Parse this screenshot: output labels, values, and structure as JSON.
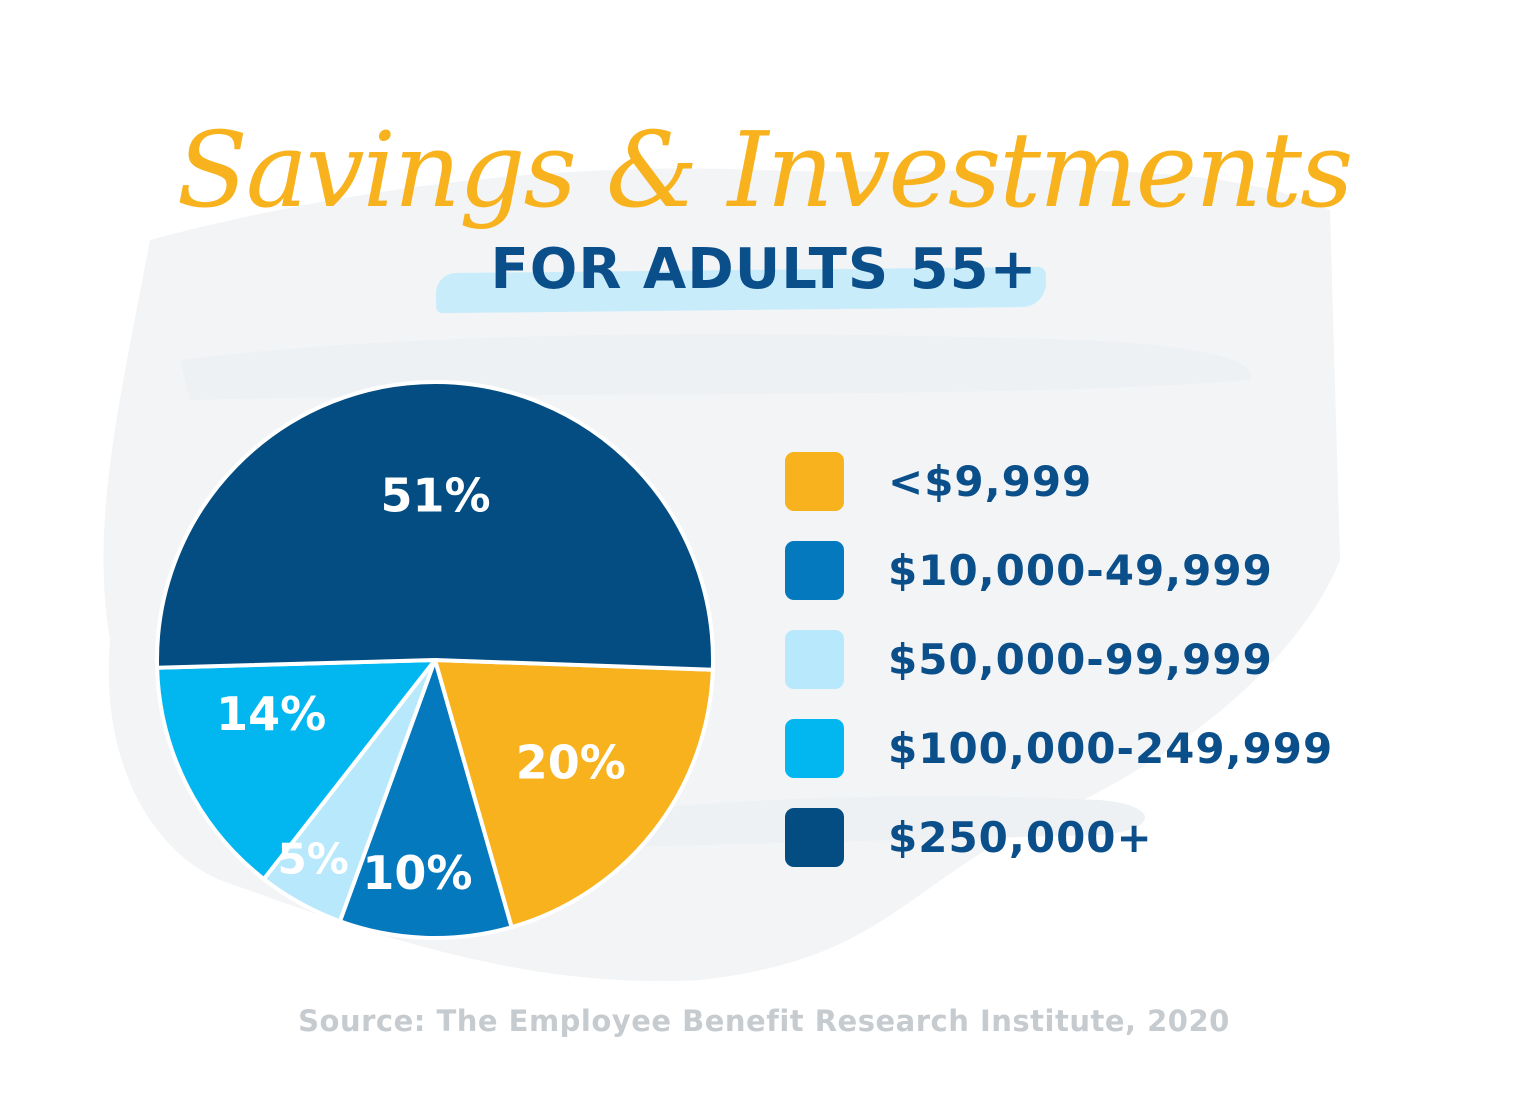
{
  "title": "Savings & Investments",
  "subtitle": "FOR ADULTS 55+",
  "source": "Source: The Employee Benefit Research Institute, 2020",
  "colors": {
    "background_brush": "#f2f4f6",
    "title": "#f7b21d",
    "subtitle": "#0a4e8a",
    "highlight": "#c9ecfb",
    "source": "#c6cbd0"
  },
  "chart_data": {
    "type": "pie",
    "title": "Savings & Investments",
    "subtitle": "FOR ADULTS 55+",
    "legend_position": "right",
    "slices": [
      {
        "label": "<$9,999",
        "value": 20,
        "display": "20%",
        "color": "#f7b21d",
        "label_color": "#ffffff"
      },
      {
        "label": "$10,000-49,999",
        "value": 10,
        "display": "10%",
        "color": "#0479be",
        "label_color": "#ffffff"
      },
      {
        "label": "$50,000-99,999",
        "value": 5,
        "display": "5%",
        "color": "#b8e8fb",
        "label_color": "#ffffff"
      },
      {
        "label": "$100,000-249,999",
        "value": 14,
        "display": "14%",
        "color": "#02b7f0",
        "label_color": "#ffffff"
      },
      {
        "label": "$250,000+",
        "value": 51,
        "display": "51%",
        "color": "#034d82",
        "label_color": "#ffffff"
      }
    ]
  }
}
